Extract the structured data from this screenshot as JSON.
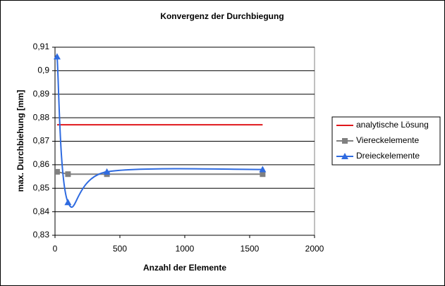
{
  "chart_data": {
    "type": "line",
    "title": "Konvergenz der Durchbiegung",
    "x_label": "Anzahl der Elemente",
    "y_label": "max. Durchbiehung [mm]",
    "x": [
      16,
      100,
      400,
      1600
    ],
    "series": [
      {
        "name": "analytische Lösung",
        "color": "#e0171c",
        "marker": "none",
        "smooth": false,
        "values": [
          0.877,
          0.877,
          0.877,
          0.877
        ]
      },
      {
        "name": "Viereckelemente",
        "color": "#808080",
        "marker": "square",
        "smooth": false,
        "values": [
          0.857,
          0.856,
          0.856,
          0.856
        ]
      },
      {
        "name": "Dreieckelemente",
        "color": "#2f6be0",
        "marker": "triangle",
        "smooth": true,
        "values": [
          0.906,
          0.844,
          0.857,
          0.858
        ]
      }
    ],
    "xlim": [
      0,
      2000
    ],
    "xticks": [
      0,
      500,
      1000,
      1500,
      2000
    ],
    "ylim": [
      0.83,
      0.91
    ],
    "yticks": [
      {
        "value": 0.83,
        "label": "0,83"
      },
      {
        "value": 0.84,
        "label": "0,84"
      },
      {
        "value": 0.85,
        "label": "0,85"
      },
      {
        "value": 0.86,
        "label": "0,86"
      },
      {
        "value": 0.87,
        "label": "0,87"
      },
      {
        "value": 0.88,
        "label": "0,88"
      },
      {
        "value": 0.89,
        "label": "0,89"
      },
      {
        "value": 0.9,
        "label": "0,9"
      },
      {
        "value": 0.91,
        "label": "0,91"
      }
    ],
    "grid": true,
    "legend": "right"
  }
}
